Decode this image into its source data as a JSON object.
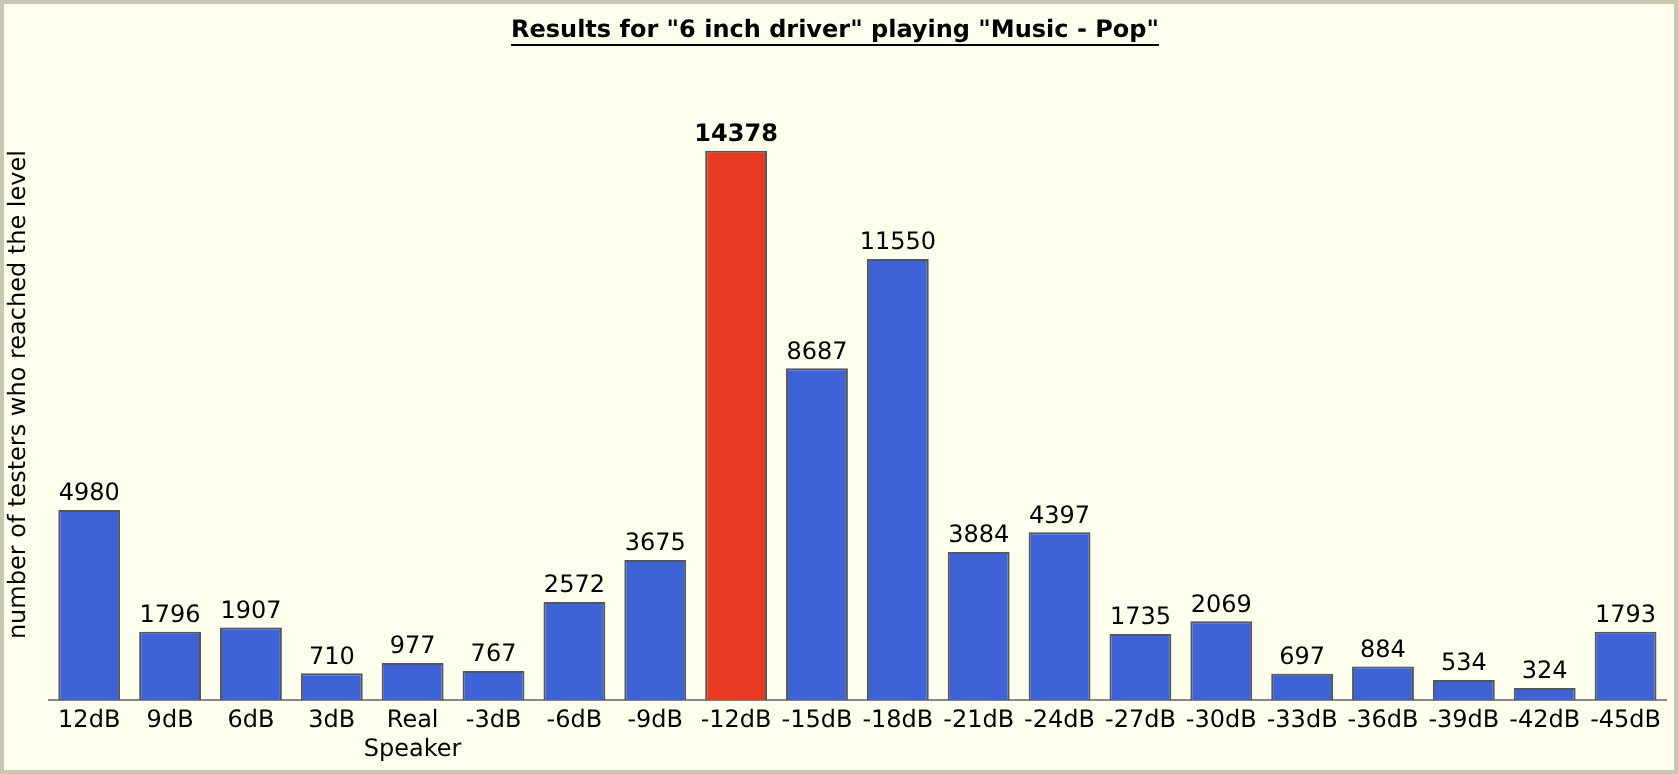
{
  "chart_data": {
    "type": "bar",
    "title": "Results for \"6 inch driver\" playing \"Music - Pop\"",
    "ylabel": "number of testers who reached the level",
    "categories": [
      "12dB",
      "9dB",
      "6dB",
      "3dB",
      "Real Speaker",
      "-3dB",
      "-6dB",
      "-9dB",
      "-12dB",
      "-15dB",
      "-18dB",
      "-21dB",
      "-24dB",
      "-27dB",
      "-30dB",
      "-33dB",
      "-36dB",
      "-39dB",
      "-42dB",
      "-45dB"
    ],
    "values": [
      4980,
      1796,
      1907,
      710,
      977,
      767,
      2572,
      3675,
      14378,
      8687,
      11550,
      3884,
      4397,
      1735,
      2069,
      697,
      884,
      534,
      324,
      1793
    ],
    "colors": [
      "#3d63d6",
      "#3d63d6",
      "#3d63d6",
      "#3d63d6",
      "#3d63d6",
      "#3d63d6",
      "#3d63d6",
      "#3d63d6",
      "#e83a22",
      "#3d63d6",
      "#3d63d6",
      "#3d63d6",
      "#3d63d6",
      "#3d63d6",
      "#3d63d6",
      "#3d63d6",
      "#3d63d6",
      "#3d63d6",
      "#3d63d6",
      "#3d63d6"
    ],
    "data_labels": true,
    "grid": false,
    "legend": false
  }
}
